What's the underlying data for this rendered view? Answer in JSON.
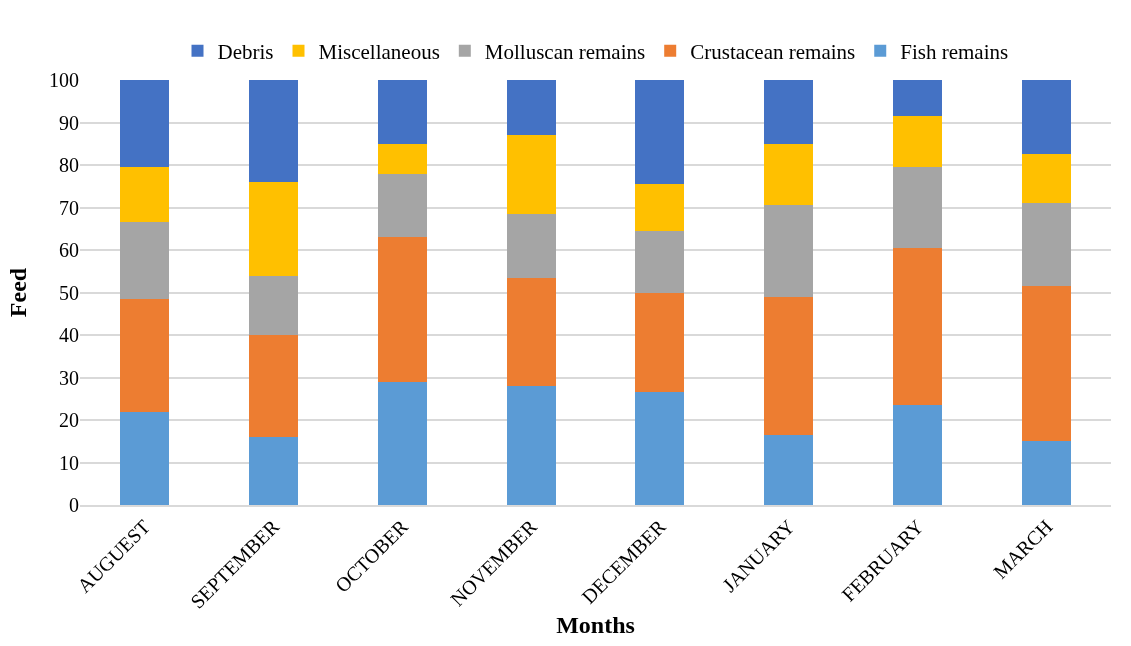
{
  "chart_data": {
    "type": "bar",
    "stacked": true,
    "xlabel": "Months",
    "ylabel": "Feed",
    "categories": [
      "AUGUEST",
      "SEPTEMBER",
      "OCTOBER",
      "NOVEMBER",
      "DECEMBER",
      "JANUARY",
      "FEBRUARY",
      "MARCH"
    ],
    "series": [
      {
        "name": "Fish remains",
        "color": "#5b9bd5",
        "values": [
          22,
          16,
          29,
          28,
          26.5,
          16.5,
          23.5,
          15
        ]
      },
      {
        "name": "Crustacean remains",
        "color": "#ed7d31",
        "values": [
          26.5,
          24,
          34,
          25.5,
          23.5,
          32.5,
          37,
          36.5
        ]
      },
      {
        "name": "Molluscan remains",
        "color": "#a5a5a5",
        "values": [
          18,
          14,
          15,
          15,
          14.5,
          21.5,
          19,
          19.5
        ]
      },
      {
        "name": "Miscellaneous",
        "color": "#ffc000",
        "values": [
          13,
          22,
          7,
          18.5,
          11,
          14.5,
          12,
          11.5
        ]
      },
      {
        "name": "Debris",
        "color": "#4472c4",
        "values": [
          20.5,
          24,
          15,
          13,
          24.5,
          15,
          8.5,
          17.5
        ]
      }
    ],
    "ylim": [
      0,
      100
    ],
    "yticks": [
      0,
      10,
      20,
      30,
      40,
      50,
      60,
      70,
      80,
      90,
      100
    ],
    "grid": "y",
    "legend": "top"
  }
}
